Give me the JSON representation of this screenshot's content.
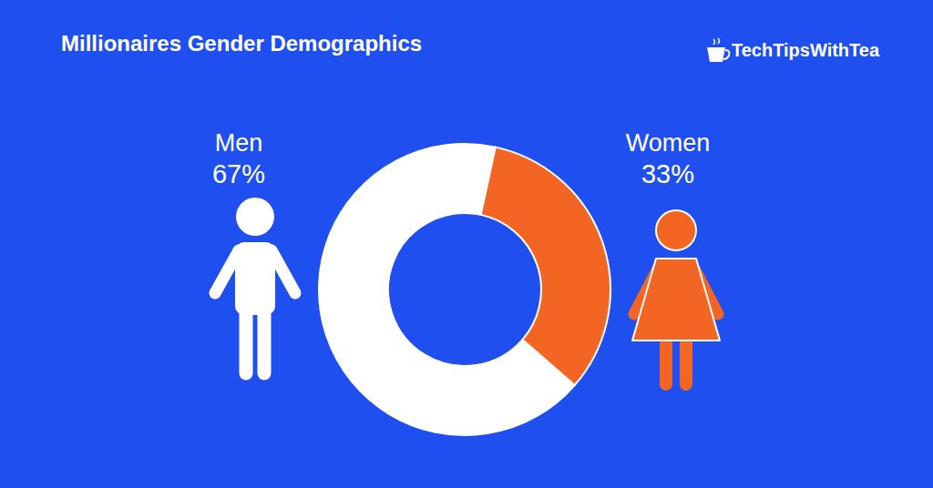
{
  "chart_data": {
    "type": "pie",
    "title": "Millionaires Gender Demographics",
    "categories": [
      "Men",
      "Women"
    ],
    "values": [
      67,
      33
    ],
    "value_labels": [
      "67%",
      "33%"
    ],
    "colors": [
      "#ffffff",
      "#f26522"
    ],
    "data_labels": true,
    "annotations": [
      "TechTipsWithTea"
    ]
  }
}
